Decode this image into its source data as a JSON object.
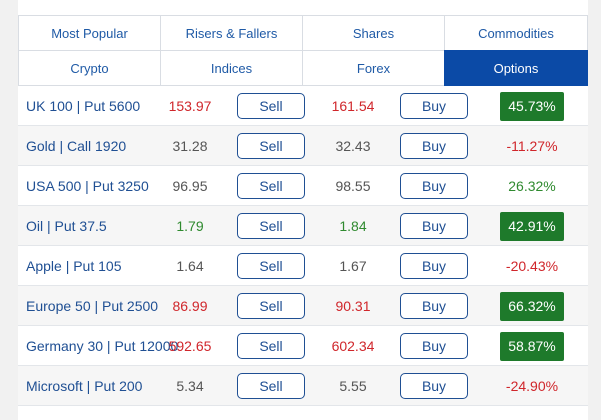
{
  "tabs": [
    {
      "label": "Most Popular",
      "active": false
    },
    {
      "label": "Risers & Fallers",
      "active": false
    },
    {
      "label": "Shares",
      "active": false
    },
    {
      "label": "Commodities",
      "active": false
    },
    {
      "label": "Crypto",
      "active": false
    },
    {
      "label": "Indices",
      "active": false
    },
    {
      "label": "Forex",
      "active": false
    },
    {
      "label": "Options",
      "active": true
    }
  ],
  "colors": {
    "accent": "#0b4aa6",
    "link": "#1f4f93",
    "negative": "#d0262b",
    "positive": "#2f8a2f",
    "badge_green": "#1e7a2b",
    "neutral": "#555555"
  },
  "buttons": {
    "sell_label": "Sell",
    "buy_label": "Buy"
  },
  "rows": [
    {
      "name": "UK 100 | Put 5600",
      "sell": "153.97",
      "buy": "161.54",
      "change": "45.73%",
      "price_color": "red",
      "change_style": "badge"
    },
    {
      "name": "Gold | Call 1920",
      "sell": "31.28",
      "buy": "32.43",
      "change": "-11.27%",
      "price_color": "grey",
      "change_style": "red"
    },
    {
      "name": "USA 500 | Put 3250",
      "sell": "96.95",
      "buy": "98.55",
      "change": "26.32%",
      "price_color": "grey",
      "change_style": "green"
    },
    {
      "name": "Oil | Put 37.5",
      "sell": "1.79",
      "buy": "1.84",
      "change": "42.91%",
      "price_color": "green",
      "change_style": "badge"
    },
    {
      "name": "Apple | Put 105",
      "sell": "1.64",
      "buy": "1.67",
      "change": "-20.43%",
      "price_color": "grey",
      "change_style": "red"
    },
    {
      "name": "Europe 50 | Put 2500",
      "sell": "86.99",
      "buy": "90.31",
      "change": "66.32%",
      "price_color": "red",
      "change_style": "badge"
    },
    {
      "name": "Germany 30 | Put 12000",
      "sell": "592.65",
      "buy": "602.34",
      "change": "58.87%",
      "price_color": "red",
      "change_style": "badge"
    },
    {
      "name": "Microsoft | Put 200",
      "sell": "5.34",
      "buy": "5.55",
      "change": "-24.90%",
      "price_color": "grey",
      "change_style": "red"
    }
  ]
}
